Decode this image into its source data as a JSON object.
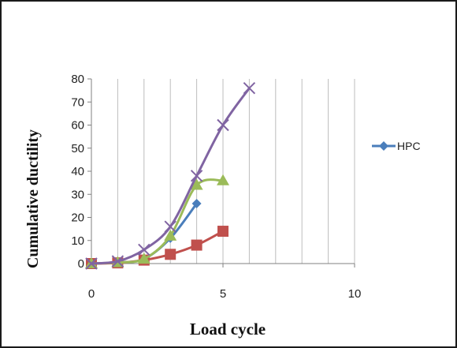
{
  "chart_data": {
    "type": "line",
    "title": "",
    "xlabel": "Load cycle",
    "ylabel": "Cumulative ductility",
    "xlim": [
      0,
      10
    ],
    "ylim": [
      0,
      80
    ],
    "xticks": [
      0,
      5,
      10
    ],
    "yticks": [
      0,
      10,
      20,
      30,
      40,
      50,
      60,
      70,
      80
    ],
    "grid": "vertical",
    "legend_position": "right",
    "series": [
      {
        "name": "HPC",
        "color": "#4a7ebb",
        "marker": "diamond",
        "x": [
          0,
          1,
          2,
          3,
          4
        ],
        "y": [
          0,
          0.5,
          2,
          11,
          26
        ]
      },
      {
        "color": "#c0504d",
        "marker": "square",
        "x": [
          0,
          1,
          2,
          3,
          4,
          5
        ],
        "y": [
          0,
          0.3,
          1.5,
          4,
          8,
          14
        ]
      },
      {
        "color": "#9bbb59",
        "marker": "triangle",
        "x": [
          0,
          1,
          2,
          3,
          4,
          5
        ],
        "y": [
          0,
          0.5,
          2,
          12,
          34,
          36
        ]
      },
      {
        "color": "#8064a2",
        "marker": "x",
        "x": [
          0,
          1,
          2,
          3,
          4,
          5,
          6
        ],
        "y": [
          0,
          1,
          6,
          16,
          38,
          60,
          76
        ]
      }
    ]
  }
}
